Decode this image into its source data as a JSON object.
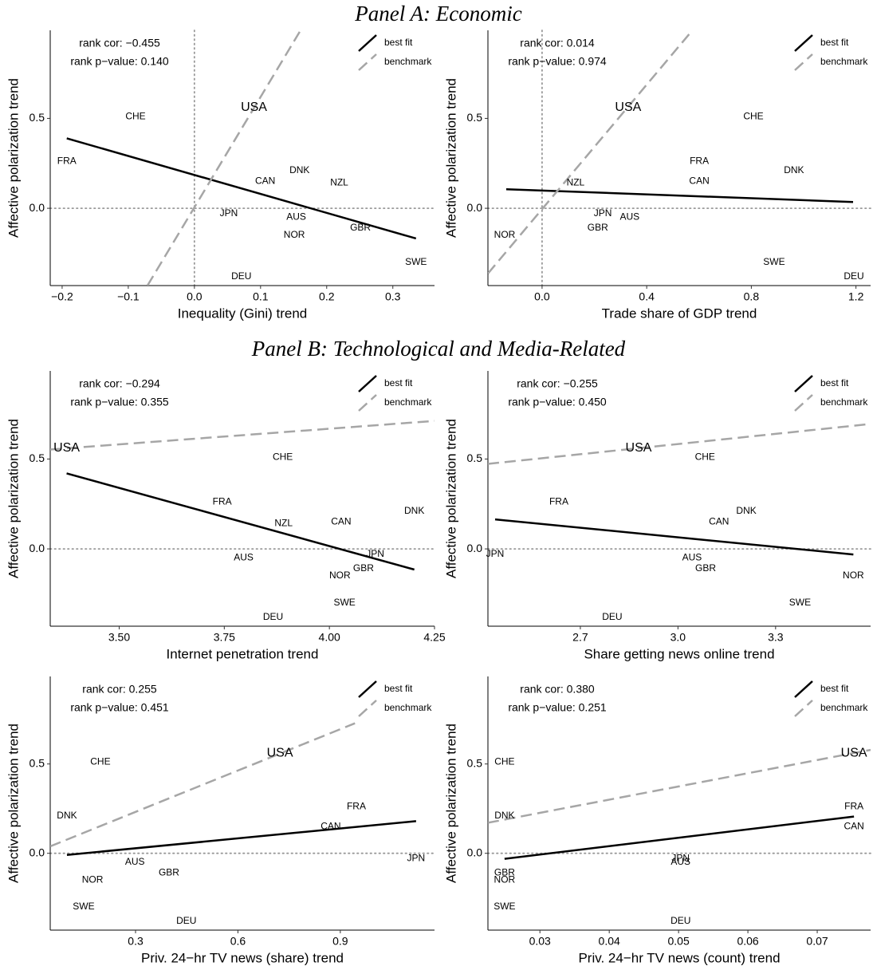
{
  "panel_titles": [
    "Panel A: Economic",
    "Panel B: Technological and Media-Related"
  ],
  "chart_data": [
    {
      "type": "scatter",
      "xlabel": "Inequality (Gini) trend",
      "ylabel": "Affective polarization trend",
      "labels": [
        "CHE",
        "FRA",
        "USA",
        "CAN",
        "DNK",
        "NZL",
        "JPN",
        "AUS",
        "NOR",
        "GBR",
        "SWE",
        "DEU"
      ],
      "x": [
        -0.089,
        -0.193,
        0.09,
        0.107,
        0.159,
        0.219,
        0.052,
        0.154,
        0.151,
        0.251,
        0.335,
        0.071
      ],
      "y": [
        0.51,
        0.26,
        0.56,
        0.15,
        0.21,
        0.14,
        -0.03,
        -0.05,
        -0.15,
        -0.11,
        -0.3,
        -0.38
      ],
      "emphasized": "USA",
      "series": [
        {
          "name": "best fit",
          "color": "#000000",
          "dashed": false,
          "x": [
            -0.193,
            0.335
          ],
          "y": [
            0.389,
            -0.168
          ]
        },
        {
          "name": "benchmark",
          "color": "#a6a6a6",
          "dashed": true,
          "x": [
            -0.071,
            0.16
          ],
          "y": [
            -0.43,
            0.987
          ]
        }
      ],
      "annotations": [
        "rank cor: −0.455",
        "rank p−value: 0.140"
      ],
      "annotation_color": "#9b1c1c",
      "xlim": [
        -0.218,
        0.363
      ],
      "ylim": [
        -0.43,
        0.99
      ],
      "xticks": [
        {
          "value": -0.2,
          "label": "−0.2"
        },
        {
          "value": -0.1,
          "label": "−0.1"
        },
        {
          "value": 0,
          "label": "0.0"
        },
        0.1,
        0.2,
        0.3
      ],
      "yticks": [
        {
          "value": 0,
          "label": "0.0"
        },
        0.5
      ],
      "reference_lines": {
        "x": 0,
        "y": 0
      },
      "legend": "top-right"
    },
    {
      "type": "scatter",
      "xlabel": "Trade share of GDP trend",
      "ylabel": "Affective polarization trend",
      "labels": [
        "USA",
        "CHE",
        "FRA",
        "CAN",
        "DNK",
        "NZL",
        "JPN",
        "AUS",
        "GBR",
        "NOR",
        "SWE",
        "DEU"
      ],
      "x": [
        0.329,
        0.808,
        0.601,
        0.601,
        0.963,
        0.128,
        0.232,
        0.335,
        0.213,
        -0.143,
        0.887,
        1.192
      ],
      "y": [
        0.56,
        0.51,
        0.26,
        0.15,
        0.21,
        0.14,
        -0.03,
        -0.05,
        -0.11,
        -0.15,
        -0.3,
        -0.38
      ],
      "emphasized": "USA",
      "series": [
        {
          "name": "best fit",
          "color": "#000000",
          "dashed": false,
          "x": [
            -0.137,
            1.189
          ],
          "y": [
            0.106,
            0.035
          ]
        },
        {
          "name": "benchmark",
          "color": "#a6a6a6",
          "dashed": true,
          "x": [
            -0.207,
            0.573
          ],
          "y": [
            -0.363,
            0.987
          ]
        }
      ],
      "annotations": [
        "rank cor: 0.014",
        "rank p−value: 0.974"
      ],
      "annotation_color": "#9b1c1c",
      "xlim": [
        -0.207,
        1.256
      ],
      "ylim": [
        -0.43,
        0.99
      ],
      "xticks": [
        {
          "value": 0,
          "label": "0.0"
        },
        0.4,
        0.8,
        1.2
      ],
      "yticks": [
        {
          "value": 0,
          "label": "0.0"
        },
        0.5
      ],
      "reference_lines": {
        "x": 0,
        "y": 0
      },
      "legend": "top-right"
    },
    {
      "type": "scatter",
      "xlabel": "Internet penetration trend",
      "ylabel": "Affective polarization trend",
      "labels": [
        "USA",
        "CHE",
        "FRA",
        "NZL",
        "CAN",
        "DNK",
        "JPN",
        "AUS",
        "GBR",
        "NOR",
        "SWE",
        "DEU"
      ],
      "x": [
        3.375,
        3.889,
        3.745,
        3.891,
        4.028,
        4.202,
        4.109,
        3.796,
        4.081,
        4.025,
        4.036,
        3.866
      ],
      "y": [
        0.56,
        0.51,
        0.26,
        0.14,
        0.15,
        0.21,
        -0.03,
        -0.05,
        -0.11,
        -0.15,
        -0.3,
        -0.38
      ],
      "emphasized": "USA",
      "series": [
        {
          "name": "best fit",
          "color": "#000000",
          "dashed": false,
          "x": [
            3.375,
            4.202
          ],
          "y": [
            0.42,
            -0.115
          ]
        },
        {
          "name": "benchmark",
          "color": "#a6a6a6",
          "dashed": true,
          "x": [
            3.336,
            4.25
          ],
          "y": [
            0.553,
            0.712
          ]
        }
      ],
      "annotations": [
        "rank cor: −0.294",
        "rank p−value: 0.355"
      ],
      "annotation_color": "#9b1c1c",
      "xlim": [
        3.336,
        4.25
      ],
      "ylim": [
        -0.43,
        0.99
      ],
      "xticks": [
        {
          "value": 3.5,
          "label": "3.50"
        },
        3.75,
        {
          "value": 4,
          "label": "4.00"
        },
        4.25
      ],
      "yticks": [
        {
          "value": 0,
          "label": "0.0"
        },
        0.5
      ],
      "reference_lines": {
        "y": 0
      },
      "legend": "top-right"
    },
    {
      "type": "scatter",
      "xlabel": "Share getting news online trend",
      "ylabel": "Affective polarization trend",
      "labels": [
        "USA",
        "CHE",
        "FRA",
        "DNK",
        "CAN",
        "JPN",
        "AUS",
        "GBR",
        "NOR",
        "SWE",
        "DEU"
      ],
      "x": [
        2.879,
        3.083,
        2.634,
        3.21,
        3.126,
        2.438,
        3.043,
        3.085,
        3.539,
        3.375,
        2.798
      ],
      "y": [
        0.56,
        0.51,
        0.26,
        0.21,
        0.15,
        -0.03,
        -0.05,
        -0.11,
        -0.15,
        -0.3,
        -0.38
      ],
      "emphasized": "USA",
      "series": [
        {
          "name": "best fit",
          "color": "#000000",
          "dashed": false,
          "x": [
            2.438,
            3.539
          ],
          "y": [
            0.164,
            -0.031
          ]
        },
        {
          "name": "benchmark",
          "color": "#a6a6a6",
          "dashed": true,
          "x": [
            2.416,
            3.592
          ],
          "y": [
            0.473,
            0.695
          ]
        }
      ],
      "annotations": [
        "rank cor: −0.255",
        "rank p−value: 0.450"
      ],
      "annotation_color": "#9b1c1c",
      "xlim": [
        2.416,
        3.592
      ],
      "ylim": [
        -0.43,
        0.99
      ],
      "xticks": [
        2.7,
        {
          "value": 3,
          "label": "3.0"
        },
        3.3
      ],
      "yticks": [
        {
          "value": 0,
          "label": "0.0"
        },
        0.5
      ],
      "reference_lines": {
        "y": 0
      },
      "legend": "top-right"
    },
    {
      "type": "scatter",
      "xlabel": "Priv. 24−hr TV news (share) trend",
      "ylabel": "Affective polarization trend",
      "labels": [
        "CHE",
        "DNK",
        "USA",
        "FRA",
        "CAN",
        "JPN",
        "AUS",
        "GBR",
        "NOR",
        "SWE",
        "DEU"
      ],
      "x": [
        0.197,
        0.099,
        0.723,
        0.947,
        0.872,
        1.122,
        0.298,
        0.398,
        0.174,
        0.148,
        0.449
      ],
      "y": [
        0.51,
        0.21,
        0.56,
        0.26,
        0.15,
        -0.03,
        -0.05,
        -0.11,
        -0.15,
        -0.3,
        -0.38
      ],
      "emphasized": "USA",
      "series": [
        {
          "name": "best fit",
          "color": "#000000",
          "dashed": false,
          "x": [
            0.099,
            1.122
          ],
          "y": [
            -0.009,
            0.18
          ]
        },
        {
          "name": "benchmark",
          "color": "#a6a6a6",
          "dashed": true,
          "x": [
            0.05,
            0.943
          ],
          "y": [
            0.039,
            0.728
          ]
        }
      ],
      "annotations": [
        "rank cor: 0.255",
        "rank p−value: 0.451"
      ],
      "annotation_color": "#9b1c1c",
      "xlim": [
        0.05,
        1.176
      ],
      "ylim": [
        -0.43,
        0.99
      ],
      "xticks": [
        0.3,
        0.6,
        0.9
      ],
      "yticks": [
        {
          "value": 0,
          "label": "0.0"
        },
        0.5
      ],
      "reference_lines": {
        "y": 0
      },
      "legend": "top-right"
    },
    {
      "type": "scatter",
      "xlabel": "Priv. 24−hr TV news (count) trend",
      "ylabel": "Affective polarization trend",
      "labels": [
        "CHE",
        "DNK",
        "USA",
        "FRA",
        "CAN",
        "JPN",
        "AUS",
        "GBR",
        "NOR",
        "SWE",
        "DEU"
      ],
      "x": [
        0.0249,
        0.0249,
        0.0753,
        0.0753,
        0.0753,
        0.0503,
        0.0503,
        0.0249,
        0.0249,
        0.0249,
        0.0503
      ],
      "y": [
        0.51,
        0.21,
        0.56,
        0.26,
        0.15,
        -0.03,
        -0.05,
        -0.11,
        -0.15,
        -0.3,
        -0.38
      ],
      "emphasized": "USA",
      "series": [
        {
          "name": "best fit",
          "color": "#000000",
          "dashed": false,
          "x": [
            0.0249,
            0.0753
          ],
          "y": [
            -0.031,
            0.206
          ]
        },
        {
          "name": "benchmark",
          "color": "#a6a6a6",
          "dashed": true,
          "x": [
            0.0225,
            0.0777
          ],
          "y": [
            0.171,
            0.579
          ]
        }
      ],
      "annotations": [
        "rank cor: 0.380",
        "rank p−value: 0.251"
      ],
      "annotation_color": "#9b1c1c",
      "xlim": [
        0.0225,
        0.0777
      ],
      "ylim": [
        -0.43,
        0.99
      ],
      "xticks": [
        0.03,
        0.04,
        0.05,
        0.06,
        0.07
      ],
      "yticks": [
        {
          "value": 0,
          "label": "0.0"
        },
        0.5
      ],
      "reference_lines": {
        "y": 0
      },
      "legend": "top-right"
    }
  ]
}
